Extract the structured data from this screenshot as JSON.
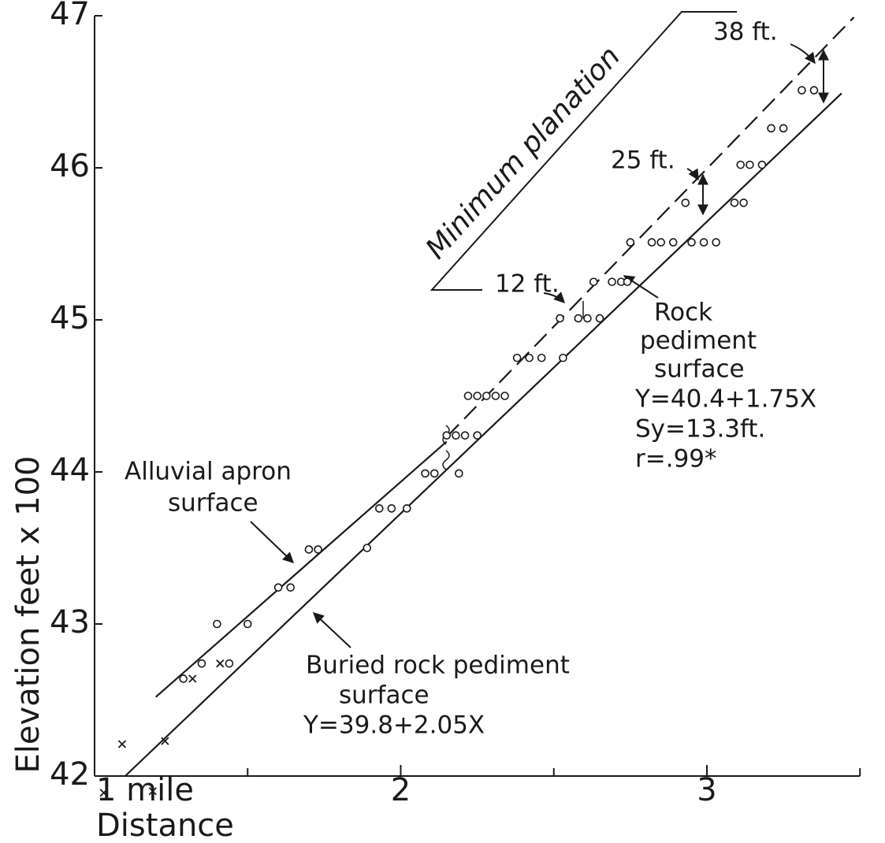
{
  "chart_data": {
    "type": "scatter",
    "y_label": "Elevation feet x 100",
    "x_label": "Distance",
    "xlim": [
      1,
      3.5
    ],
    "ylim": [
      42,
      47
    ],
    "xticks": [
      {
        "value": 1,
        "label": "1 mile"
      },
      2,
      3
    ],
    "xminor_ticks": [
      1.5,
      2.5,
      3.5
    ],
    "yticks": [
      42,
      43,
      44,
      45,
      46,
      47
    ],
    "color": "#1a1a1a",
    "series": [
      {
        "marker": "o",
        "x": [
          1.29,
          1.35,
          1.44,
          1.4,
          1.5,
          1.6,
          1.64,
          1.7,
          1.73,
          1.89,
          1.93,
          1.97,
          2.02,
          2.08,
          2.11,
          2.19,
          2.15,
          2.18,
          2.21,
          2.25,
          2.22,
          2.25,
          2.28,
          2.31,
          2.34,
          2.38,
          2.42,
          2.46,
          2.53,
          2.52,
          2.58,
          2.61,
          2.65,
          2.63,
          2.69,
          2.72,
          2.74,
          2.75,
          2.82,
          2.85,
          2.89,
          2.95,
          2.99,
          3.03,
          2.93,
          3.09,
          3.12,
          3.11,
          3.14,
          3.18,
          3.21,
          3.25,
          3.31,
          3.35
        ],
        "values": [
          42.64,
          42.74,
          42.74,
          43.0,
          43.0,
          43.24,
          43.24,
          43.49,
          43.49,
          43.5,
          43.76,
          43.76,
          43.76,
          43.99,
          43.99,
          43.99,
          44.24,
          44.24,
          44.24,
          44.24,
          44.5,
          44.5,
          44.5,
          44.5,
          44.5,
          44.75,
          44.75,
          44.75,
          44.75,
          45.01,
          45.01,
          45.01,
          45.01,
          45.25,
          45.25,
          45.25,
          45.25,
          45.51,
          45.51,
          45.51,
          45.51,
          45.51,
          45.51,
          45.51,
          45.77,
          45.77,
          45.77,
          46.02,
          46.02,
          46.02,
          46.26,
          46.26,
          46.51,
          46.51
        ]
      },
      {
        "marker": "x",
        "x": [
          1.03,
          1.09,
          1.19,
          1.23,
          1.32,
          1.41
        ],
        "values": [
          41.89,
          42.21,
          41.9,
          42.23,
          42.64,
          42.74
        ]
      }
    ],
    "lines": [
      {
        "dashed": false,
        "x": [
          1.2,
          2.15
        ],
        "values": [
          42.52,
          44.2
        ]
      },
      {
        "dashed": false,
        "x": [
          1.1,
          3.44
        ],
        "values": [
          42.0,
          46.49
        ]
      },
      {
        "dashed": true,
        "x": [
          2.15,
          3.48
        ],
        "values": [
          44.23,
          46.99
        ]
      }
    ],
    "annotations": [
      [
        "38 ft."
      ],
      [
        "25 ft."
      ],
      [
        "12 ft."
      ],
      [
        "Minimum planation"
      ],
      [
        "Rock",
        "pediment",
        "surface",
        "Y=40.4+1.75X",
        "Sy=13.3ft.",
        "r=.99*"
      ],
      [
        "Alluvial apron",
        "surface"
      ],
      [
        "Buried rock pediment",
        "surface",
        "Y=39.8+2.05X"
      ]
    ]
  }
}
